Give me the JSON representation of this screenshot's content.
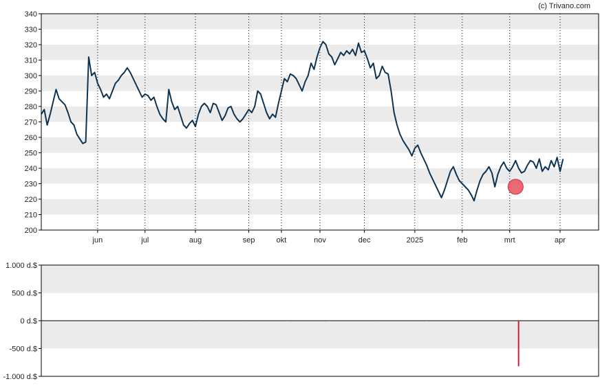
{
  "credit": "(c) Trivano.com",
  "colors": {
    "line": "#0d3350",
    "band": "#ebebeb",
    "marker": "#e8505b",
    "volume_bar": "#cc2233",
    "axis": "#000000"
  },
  "chart_data": [
    {
      "type": "line",
      "ylim": [
        200,
        340
      ],
      "yticks": [
        "200",
        "210",
        "220",
        "230",
        "240",
        "250",
        "260",
        "270",
        "280",
        "290",
        "300",
        "310",
        "320",
        "330",
        "340"
      ],
      "xticks": [
        {
          "label": "jun",
          "x": 19
        },
        {
          "label": "jul",
          "x": 35
        },
        {
          "label": "aug",
          "x": 52
        },
        {
          "label": "sep",
          "x": 70
        },
        {
          "label": "okt",
          "x": 81
        },
        {
          "label": "nov",
          "x": 94
        },
        {
          "label": "dec",
          "x": 109
        },
        {
          "label": "2025",
          "x": 126
        },
        {
          "label": "feb",
          "x": 142
        },
        {
          "label": "mrt",
          "x": 158
        },
        {
          "label": "apr",
          "x": 175
        }
      ],
      "xlim": [
        0,
        188
      ],
      "grid": "alternating horizontal bands, dotted vertical lines at month ticks",
      "series": [
        {
          "points": [
            [
              0,
              275
            ],
            [
              1,
              278
            ],
            [
              2,
              268
            ],
            [
              3,
              275
            ],
            [
              4,
              283
            ],
            [
              5,
              291
            ],
            [
              6,
              285
            ],
            [
              7,
              283
            ],
            [
              8,
              281
            ],
            [
              9,
              276
            ],
            [
              10,
              270
            ],
            [
              11,
              268
            ],
            [
              12,
              262
            ],
            [
              13,
              259
            ],
            [
              14,
              256
            ],
            [
              15,
              257
            ],
            [
              16,
              312
            ],
            [
              17,
              300
            ],
            [
              18,
              302
            ],
            [
              19,
              295
            ],
            [
              20,
              291
            ],
            [
              21,
              286
            ],
            [
              22,
              288
            ],
            [
              23,
              285
            ],
            [
              24,
              290
            ],
            [
              25,
              295
            ],
            [
              26,
              297
            ],
            [
              27,
              300
            ],
            [
              28,
              302
            ],
            [
              29,
              305
            ],
            [
              30,
              302
            ],
            [
              31,
              298
            ],
            [
              32,
              294
            ],
            [
              33,
              290
            ],
            [
              34,
              286
            ],
            [
              35,
              288
            ],
            [
              36,
              287
            ],
            [
              37,
              284
            ],
            [
              38,
              286
            ],
            [
              39,
              280
            ],
            [
              40,
              275
            ],
            [
              41,
              272
            ],
            [
              42,
              270
            ],
            [
              43,
              291
            ],
            [
              44,
              283
            ],
            [
              45,
              278
            ],
            [
              46,
              280
            ],
            [
              47,
              274
            ],
            [
              48,
              268
            ],
            [
              49,
              266
            ],
            [
              50,
              269
            ],
            [
              51,
              271
            ],
            [
              52,
              267
            ],
            [
              53,
              275
            ],
            [
              54,
              280
            ],
            [
              55,
              282
            ],
            [
              56,
              280
            ],
            [
              57,
              276
            ],
            [
              58,
              282
            ],
            [
              59,
              281
            ],
            [
              60,
              276
            ],
            [
              61,
              271
            ],
            [
              62,
              274
            ],
            [
              63,
              279
            ],
            [
              64,
              280
            ],
            [
              65,
              275
            ],
            [
              66,
              272
            ],
            [
              67,
              270
            ],
            [
              68,
              272
            ],
            [
              69,
              275
            ],
            [
              70,
              278
            ],
            [
              71,
              276
            ],
            [
              72,
              280
            ],
            [
              73,
              290
            ],
            [
              74,
              288
            ],
            [
              75,
              282
            ],
            [
              76,
              276
            ],
            [
              77,
              272
            ],
            [
              78,
              275
            ],
            [
              79,
              273
            ],
            [
              80,
              282
            ],
            [
              81,
              290
            ],
            [
              82,
              298
            ],
            [
              83,
              296
            ],
            [
              84,
              301
            ],
            [
              85,
              300
            ],
            [
              86,
              298
            ],
            [
              87,
              294
            ],
            [
              88,
              290
            ],
            [
              89,
              296
            ],
            [
              90,
              300
            ],
            [
              91,
              308
            ],
            [
              92,
              304
            ],
            [
              93,
              312
            ],
            [
              94,
              318
            ],
            [
              95,
              322
            ],
            [
              96,
              320
            ],
            [
              97,
              314
            ],
            [
              98,
              312
            ],
            [
              99,
              307
            ],
            [
              100,
              311
            ],
            [
              101,
              315
            ],
            [
              102,
              313
            ],
            [
              103,
              316
            ],
            [
              104,
              314
            ],
            [
              105,
              317
            ],
            [
              106,
              313
            ],
            [
              107,
              321
            ],
            [
              108,
              315
            ],
            [
              109,
              316
            ],
            [
              110,
              311
            ],
            [
              111,
              305
            ],
            [
              112,
              308
            ],
            [
              113,
              298
            ],
            [
              114,
              300
            ],
            [
              115,
              306
            ],
            [
              116,
              302
            ],
            [
              117,
              301
            ],
            [
              118,
              290
            ],
            [
              119,
              276
            ],
            [
              120,
              268
            ],
            [
              121,
              262
            ],
            [
              122,
              258
            ],
            [
              123,
              255
            ],
            [
              124,
              252
            ],
            [
              125,
              248
            ],
            [
              126,
              253
            ],
            [
              127,
              255
            ],
            [
              128,
              250
            ],
            [
              129,
              246
            ],
            [
              130,
              242
            ],
            [
              131,
              237
            ],
            [
              132,
              233
            ],
            [
              133,
              229
            ],
            [
              134,
              225
            ],
            [
              135,
              221
            ],
            [
              136,
              226
            ],
            [
              137,
              232
            ],
            [
              138,
              238
            ],
            [
              139,
              241
            ],
            [
              140,
              236
            ],
            [
              141,
              232
            ],
            [
              142,
              230
            ],
            [
              143,
              228
            ],
            [
              144,
              226
            ],
            [
              145,
              223
            ],
            [
              146,
              219
            ],
            [
              147,
              226
            ],
            [
              148,
              232
            ],
            [
              149,
              236
            ],
            [
              150,
              238
            ],
            [
              151,
              241
            ],
            [
              152,
              237
            ],
            [
              153,
              228
            ],
            [
              154,
              236
            ],
            [
              155,
              241
            ],
            [
              156,
              244
            ],
            [
              157,
              240
            ],
            [
              158,
              238
            ],
            [
              159,
              241
            ],
            [
              160,
              245
            ],
            [
              161,
              240
            ],
            [
              162,
              237
            ],
            [
              163,
              238
            ],
            [
              164,
              242
            ],
            [
              165,
              245
            ],
            [
              166,
              244
            ],
            [
              167,
              240
            ],
            [
              168,
              246
            ],
            [
              169,
              238
            ],
            [
              170,
              241
            ],
            [
              171,
              239
            ],
            [
              172,
              245
            ],
            [
              173,
              241
            ],
            [
              174,
              247
            ],
            [
              175,
              238
            ],
            [
              176,
              246
            ]
          ]
        }
      ],
      "marker": {
        "x": 160,
        "y": 228
      }
    },
    {
      "type": "bar",
      "ylim": [
        -1000,
        1000
      ],
      "yticks": [
        "1.000 d.$",
        "500 d.$",
        "0 d.$",
        "-500 d.$",
        "-1.000 d.$"
      ],
      "series": [
        {
          "points": [
            [
              53,
              -8
            ],
            [
              69,
              -8
            ],
            [
              83,
              -8
            ],
            [
              97,
              -8
            ],
            [
              113,
              -8
            ],
            [
              130,
              -8
            ],
            [
              161,
              -820
            ]
          ]
        }
      ]
    }
  ]
}
